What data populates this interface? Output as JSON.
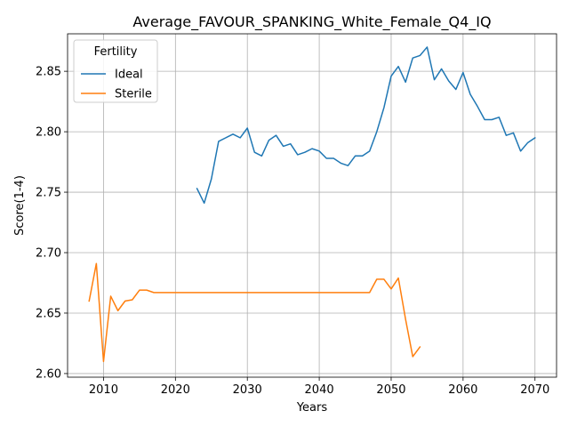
{
  "chart_data": {
    "type": "line",
    "title": "Average_FAVOUR_SPANKING_White_Female_Q4_IQ",
    "xlabel": "Years",
    "ylabel": "Score(1-4)",
    "xlim": [
      2005,
      2073
    ],
    "ylim": [
      2.597,
      2.881
    ],
    "xticks": [
      2010,
      2020,
      2030,
      2040,
      2050,
      2060,
      2070
    ],
    "yticks": [
      2.6,
      2.65,
      2.7,
      2.75,
      2.8,
      2.85
    ],
    "ytick_labels": [
      "2.60",
      "2.65",
      "2.70",
      "2.75",
      "2.80",
      "2.85"
    ],
    "grid": true,
    "legend": {
      "title": "Fertility",
      "placement": "top-left"
    },
    "series": [
      {
        "name": "Ideal",
        "color": "#1f77b4",
        "x": [
          2023,
          2024,
          2025,
          2026,
          2027,
          2028,
          2029,
          2030,
          2031,
          2032,
          2033,
          2034,
          2035,
          2036,
          2037,
          2038,
          2039,
          2040,
          2041,
          2042,
          2043,
          2044,
          2045,
          2046,
          2047,
          2048,
          2049,
          2050,
          2051,
          2052,
          2053,
          2054,
          2055,
          2056,
          2057,
          2058,
          2059,
          2060,
          2061,
          2062,
          2063,
          2064,
          2065,
          2066,
          2067,
          2068,
          2069,
          2070
        ],
        "y": [
          2.753,
          2.741,
          2.761,
          2.792,
          2.795,
          2.798,
          2.795,
          2.803,
          2.783,
          2.78,
          2.793,
          2.797,
          2.788,
          2.79,
          2.781,
          2.783,
          2.786,
          2.784,
          2.778,
          2.778,
          2.774,
          2.772,
          2.78,
          2.78,
          2.784,
          2.8,
          2.82,
          2.846,
          2.854,
          2.841,
          2.861,
          2.863,
          2.87,
          2.843,
          2.852,
          2.842,
          2.835,
          2.849,
          2.831,
          2.821,
          2.81,
          2.81,
          2.812,
          2.797,
          2.799,
          2.784,
          2.791,
          2.795
        ]
      },
      {
        "name": "Sterile",
        "color": "#ff7f0e",
        "x": [
          2008,
          2009,
          2010,
          2011,
          2012,
          2013,
          2014,
          2015,
          2016,
          2017,
          2018,
          2019,
          2020,
          2021,
          2022,
          2023,
          2024,
          2025,
          2026,
          2027,
          2028,
          2029,
          2030,
          2031,
          2032,
          2033,
          2034,
          2035,
          2036,
          2037,
          2038,
          2039,
          2040,
          2041,
          2042,
          2043,
          2044,
          2045,
          2046,
          2047,
          2048,
          2049,
          2050,
          2051,
          2052,
          2053,
          2054
        ],
        "y": [
          2.66,
          2.691,
          2.61,
          2.664,
          2.652,
          2.66,
          2.661,
          2.669,
          2.669,
          2.667,
          2.667,
          2.667,
          2.667,
          2.667,
          2.667,
          2.667,
          2.667,
          2.667,
          2.667,
          2.667,
          2.667,
          2.667,
          2.667,
          2.667,
          2.667,
          2.667,
          2.667,
          2.667,
          2.667,
          2.667,
          2.667,
          2.667,
          2.667,
          2.667,
          2.667,
          2.667,
          2.667,
          2.667,
          2.667,
          2.667,
          2.678,
          2.678,
          2.67,
          2.679,
          2.645,
          2.614,
          2.622
        ]
      }
    ]
  }
}
